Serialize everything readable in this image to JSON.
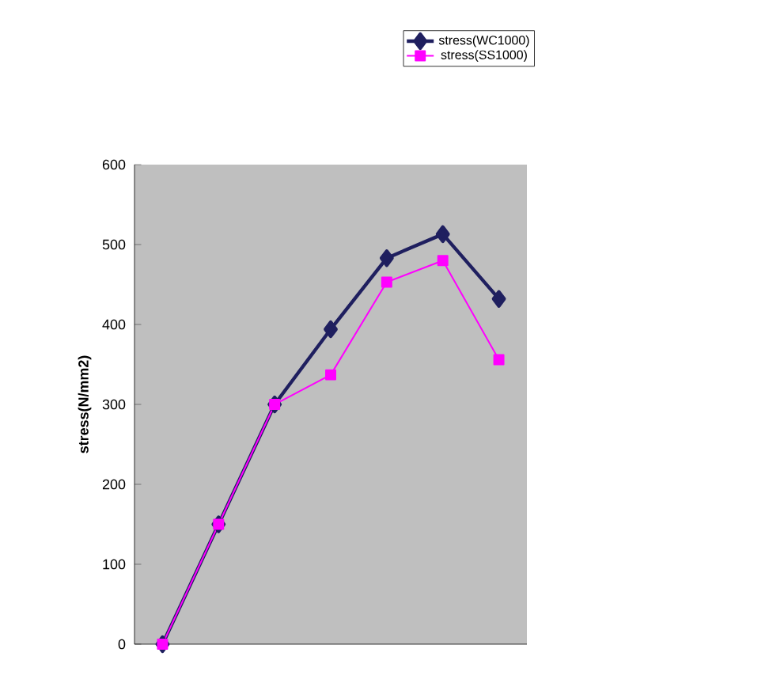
{
  "chart_data": {
    "type": "line",
    "ylabel": "stress(N/mm2)",
    "categories": [
      null,
      null,
      null,
      null,
      null,
      null,
      null
    ],
    "series": [
      {
        "name": "stress(WC1000)",
        "color": "#1f1f5f",
        "marker": "diamond",
        "values": [
          0,
          150,
          300,
          394,
          483,
          513,
          432
        ]
      },
      {
        "name": "stress(SS1000)",
        "color": "#ff00ff",
        "marker": "square",
        "values": [
          0,
          150,
          300,
          337,
          453,
          480,
          356
        ]
      }
    ],
    "ylim": [
      0,
      600
    ],
    "yticks": [
      0,
      100,
      200,
      300,
      400,
      500,
      600
    ],
    "grid": false,
    "legend": "top right"
  }
}
